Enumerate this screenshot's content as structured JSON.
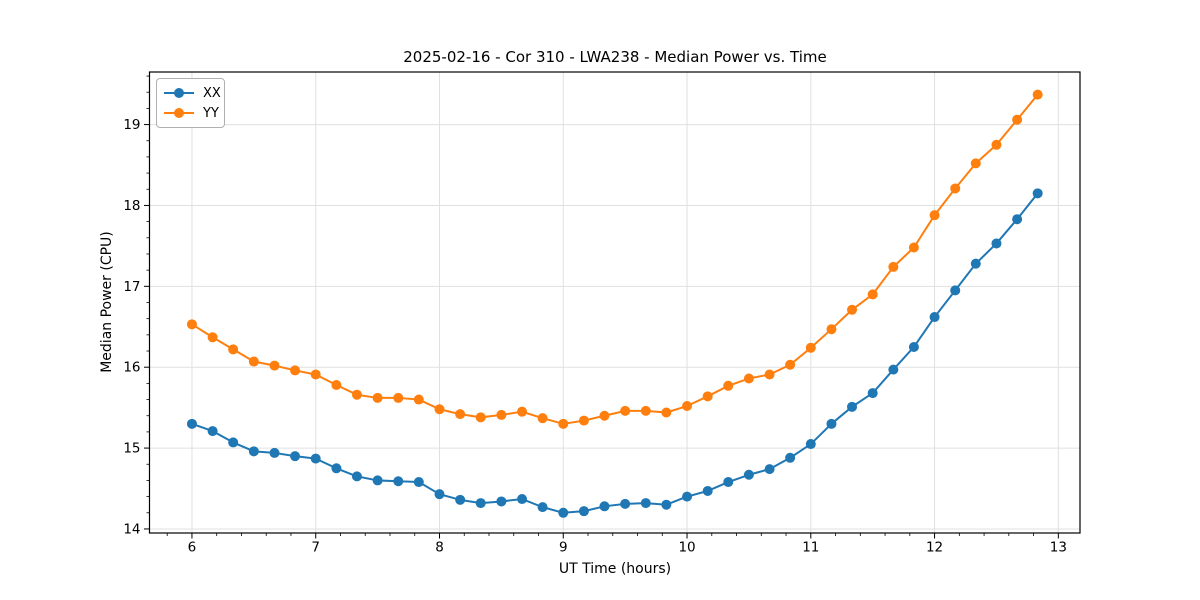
{
  "chart_data": {
    "type": "line",
    "title": "2025-02-16 - Cor 310 - LWA238 - Median Power vs. Time",
    "xlabel": "UT Time (hours)",
    "ylabel": "Median Power (CPU)",
    "xlim": [
      5.657,
      13.175
    ],
    "ylim": [
      13.95,
      19.65
    ],
    "xticks": [
      6,
      7,
      8,
      9,
      10,
      11,
      12,
      13
    ],
    "yticks": [
      14,
      15,
      16,
      17,
      18,
      19
    ],
    "minor_tick_step_x": 0.2,
    "minor_tick_step_y": 0.2,
    "grid": true,
    "grid_color": "#e0e0e0",
    "legend_position": "upper-left",
    "x": [
      6.0,
      6.167,
      6.333,
      6.5,
      6.667,
      6.833,
      7.0,
      7.167,
      7.333,
      7.5,
      7.667,
      7.833,
      8.0,
      8.167,
      8.333,
      8.5,
      8.667,
      8.833,
      9.0,
      9.167,
      9.333,
      9.5,
      9.667,
      9.833,
      10.0,
      10.167,
      10.333,
      10.5,
      10.667,
      10.833,
      11.0,
      11.167,
      11.333,
      11.5,
      11.667,
      11.833,
      12.0,
      12.167,
      12.333,
      12.5,
      12.667,
      12.833
    ],
    "series": [
      {
        "name": "XX",
        "color": "#1f77b4",
        "values": [
          15.3,
          15.21,
          15.07,
          14.96,
          14.94,
          14.9,
          14.87,
          14.75,
          14.65,
          14.6,
          14.59,
          14.58,
          14.43,
          14.36,
          14.32,
          14.34,
          14.37,
          14.27,
          14.2,
          14.22,
          14.28,
          14.31,
          14.32,
          14.3,
          14.4,
          14.47,
          14.58,
          14.67,
          14.74,
          14.88,
          15.05,
          15.3,
          15.51,
          15.68,
          15.97,
          16.25,
          16.62,
          16.95,
          17.28,
          17.53,
          17.83,
          18.15
        ]
      },
      {
        "name": "YY",
        "color": "#ff7f0e",
        "values": [
          16.53,
          16.37,
          16.22,
          16.07,
          16.02,
          15.96,
          15.91,
          15.78,
          15.66,
          15.62,
          15.62,
          15.6,
          15.48,
          15.42,
          15.38,
          15.41,
          15.45,
          15.37,
          15.3,
          15.34,
          15.4,
          15.46,
          15.46,
          15.44,
          15.52,
          15.64,
          15.77,
          15.86,
          15.91,
          16.03,
          16.24,
          16.47,
          16.71,
          16.9,
          17.24,
          17.48,
          17.88,
          18.21,
          18.52,
          18.75,
          19.06,
          19.37
        ]
      }
    ]
  }
}
